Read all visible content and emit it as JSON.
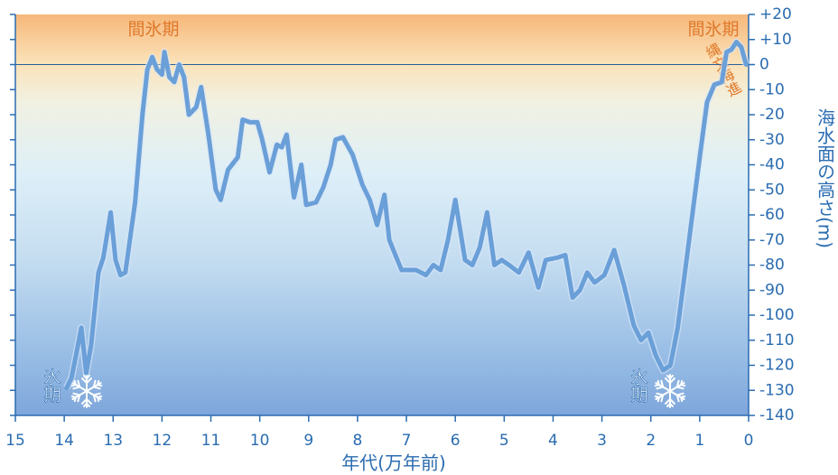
{
  "chart_data": {
    "type": "line",
    "xlabel": "年代(万年前)",
    "ylabel": "海水面の高さ(m)",
    "annotations": [
      "間氷期",
      "間氷期",
      "縄文海進",
      "氷期",
      "氷期"
    ],
    "x": [
      13.95,
      13.85,
      13.65,
      13.55,
      13.45,
      13.3,
      13.2,
      13.05,
      12.95,
      12.85,
      12.75,
      12.55,
      12.4,
      12.3,
      12.2,
      12.1,
      12.0,
      11.95,
      11.85,
      11.75,
      11.65,
      11.55,
      11.45,
      11.3,
      11.2,
      11.05,
      10.9,
      10.8,
      10.65,
      10.45,
      10.35,
      10.2,
      10.05,
      9.95,
      9.8,
      9.65,
      9.55,
      9.45,
      9.3,
      9.15,
      9.05,
      8.85,
      8.7,
      8.55,
      8.45,
      8.3,
      8.1,
      7.9,
      7.75,
      7.6,
      7.45,
      7.35,
      7.1,
      6.8,
      6.6,
      6.45,
      6.3,
      6.15,
      6.0,
      5.8,
      5.65,
      5.5,
      5.35,
      5.2,
      5.05,
      4.9,
      4.7,
      4.5,
      4.3,
      4.15,
      3.9,
      3.75,
      3.6,
      3.45,
      3.3,
      3.15,
      2.95,
      2.75,
      2.55,
      2.35,
      2.2,
      2.05,
      1.9,
      1.75,
      1.6,
      1.45,
      1.25,
      1.0,
      0.85,
      0.7,
      0.55,
      0.45,
      0.35,
      0.25,
      0.15,
      0.05
    ],
    "series": [
      {
        "color": "#6a9fd8",
        "values": [
          -129,
          -125,
          -105,
          -123,
          -112,
          -83,
          -77,
          -59,
          -78,
          -84,
          -83,
          -55,
          -20,
          -2,
          3,
          -2,
          -4,
          5,
          -5,
          -7,
          0,
          -5,
          -20,
          -17,
          -9,
          -28,
          -50,
          -54,
          -42,
          -37,
          -22,
          -23,
          -23,
          -30,
          -43,
          -32,
          -33,
          -28,
          -53,
          -40,
          -56,
          -55,
          -49,
          -40,
          -30,
          -29,
          -36,
          -48,
          -54,
          -64,
          -52,
          -70,
          -82,
          -82,
          -84,
          -80,
          -82,
          -70,
          -54,
          -78,
          -80,
          -73,
          -59,
          -80,
          -78,
          -80,
          -83,
          -75,
          -89,
          -78,
          -77,
          -76,
          -93,
          -90,
          -83,
          -87,
          -84,
          -74,
          -88,
          -104,
          -110,
          -107,
          -116,
          -122,
          -120,
          -105,
          -75,
          -37,
          -15,
          -8,
          -7,
          5,
          6,
          9,
          7,
          0
        ]
      }
    ],
    "xlim": [
      15,
      0
    ],
    "xticks": [
      15,
      14,
      13,
      12,
      11,
      10,
      9,
      8,
      7,
      6,
      5,
      4,
      3,
      2,
      1,
      0
    ],
    "ylim": [
      -140,
      20
    ],
    "yticks": [
      {
        "value": 20,
        "label": "+20"
      },
      {
        "value": 10,
        "label": "+10"
      },
      0,
      -10,
      -20,
      -30,
      -40,
      -50,
      -60,
      -70,
      -80,
      -90,
      -100,
      -110,
      -120,
      -130,
      -140
    ]
  }
}
